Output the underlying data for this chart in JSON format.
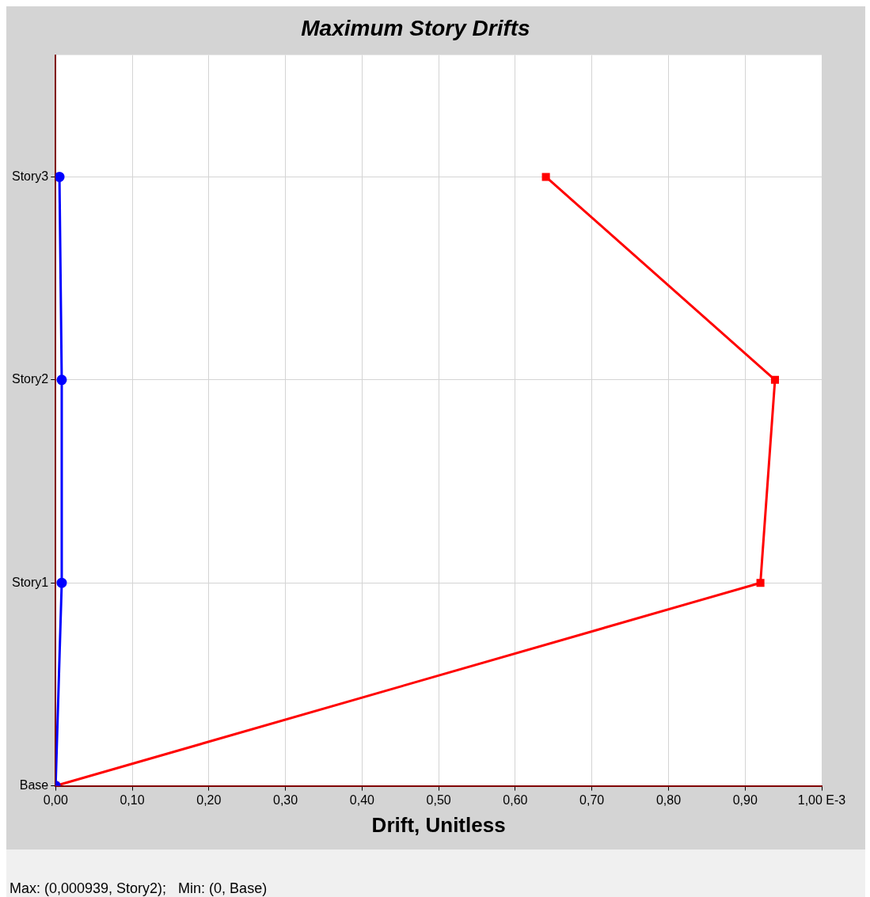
{
  "chart_data": {
    "type": "line",
    "title": "Maximum Story Drifts",
    "xlabel": "Drift, Unitless",
    "orientation": "horizontal",
    "categories": [
      "Story3",
      "Story2",
      "Story1",
      "Base"
    ],
    "series": [
      {
        "color": "#0000ff",
        "marker": "circle",
        "values": [
          0.005,
          0.008,
          0.008,
          0
        ]
      },
      {
        "color": "#ff0000",
        "marker": "square",
        "values": [
          0.64,
          0.939,
          0.92,
          0
        ]
      }
    ],
    "xlim": [
      0,
      1
    ],
    "xticks": [
      {
        "value": 0,
        "label": "0,00"
      },
      {
        "value": 0.1,
        "label": "0,10"
      },
      {
        "value": 0.2,
        "label": "0,20"
      },
      {
        "value": 0.3,
        "label": "0,30"
      },
      {
        "value": 0.4,
        "label": "0,40"
      },
      {
        "value": 0.5,
        "label": "0,50"
      },
      {
        "value": 0.6,
        "label": "0,60"
      },
      {
        "value": 0.7,
        "label": "0,70"
      },
      {
        "value": 0.8,
        "label": "0,80"
      },
      {
        "value": 0.9,
        "label": "0,90"
      },
      {
        "value": 1,
        "label": "1,00 E-3"
      }
    ],
    "grid": true,
    "legend": false,
    "annotations": [
      "Max: (0,000939, Story2);   Min: (0, Base)"
    ]
  }
}
